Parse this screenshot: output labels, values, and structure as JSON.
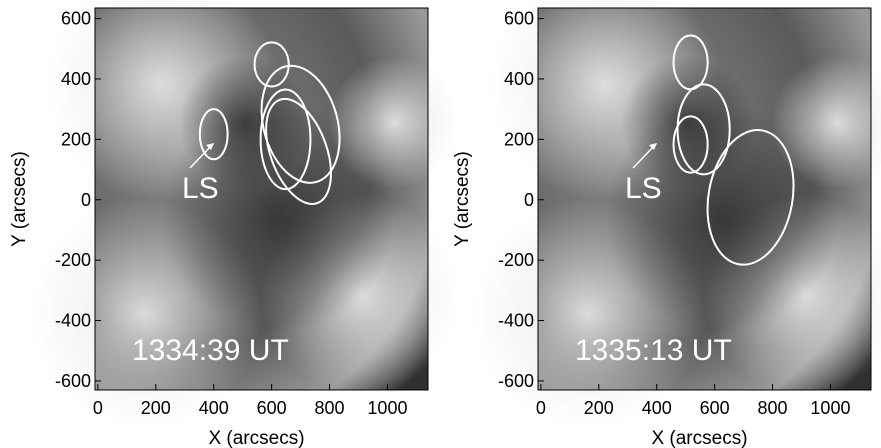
{
  "chart_data": [
    {
      "type": "contour-image",
      "xlabel": "X (arcsecs)",
      "ylabel": "Y (arcsecs)",
      "annotations": [
        "LS",
        "1334:39 UT"
      ],
      "xlim": [
        -10,
        1140
      ],
      "xticks": [
        0,
        200,
        400,
        600,
        800,
        1000
      ],
      "ylim": [
        -630,
        635
      ],
      "yticks": [
        -600,
        -400,
        -200,
        0,
        200,
        400,
        600
      ],
      "contours": [
        {
          "cx": 400,
          "cy": 217,
          "rx": 48,
          "ry": 83,
          "rotate": 0
        },
        {
          "cx": 600,
          "cy": 448,
          "rx": 59,
          "ry": 73,
          "rotate": 0
        },
        {
          "cx": 700,
          "cy": 250,
          "rx": 128,
          "ry": 198,
          "rotate": -15
        },
        {
          "cx": 648,
          "cy": 200,
          "rx": 86,
          "ry": 165,
          "rotate": 0
        },
        {
          "cx": 693,
          "cy": 160,
          "rx": 97,
          "ry": 182,
          "rotate": -20
        }
      ]
    },
    {
      "type": "contour-image",
      "xlabel": "X (arcsecs)",
      "ylabel": "Y (arcsecs)",
      "annotations": [
        "LS",
        "1335:13 UT"
      ],
      "xlim": [
        -10,
        1140
      ],
      "xticks": [
        0,
        200,
        400,
        600,
        800,
        1000
      ],
      "ylim": [
        -630,
        635
      ],
      "yticks": [
        -600,
        -400,
        -200,
        0,
        200,
        400,
        600
      ],
      "contours": [
        {
          "cx": 517,
          "cy": 455,
          "rx": 59,
          "ry": 89,
          "rotate": 0
        },
        {
          "cx": 562,
          "cy": 233,
          "rx": 90,
          "ry": 149,
          "rotate": 0
        },
        {
          "cx": 517,
          "cy": 183,
          "rx": 59,
          "ry": 93,
          "rotate": 0
        },
        {
          "cx": 724,
          "cy": 8,
          "rx": 145,
          "ry": 225,
          "rotate": 10
        }
      ]
    }
  ]
}
